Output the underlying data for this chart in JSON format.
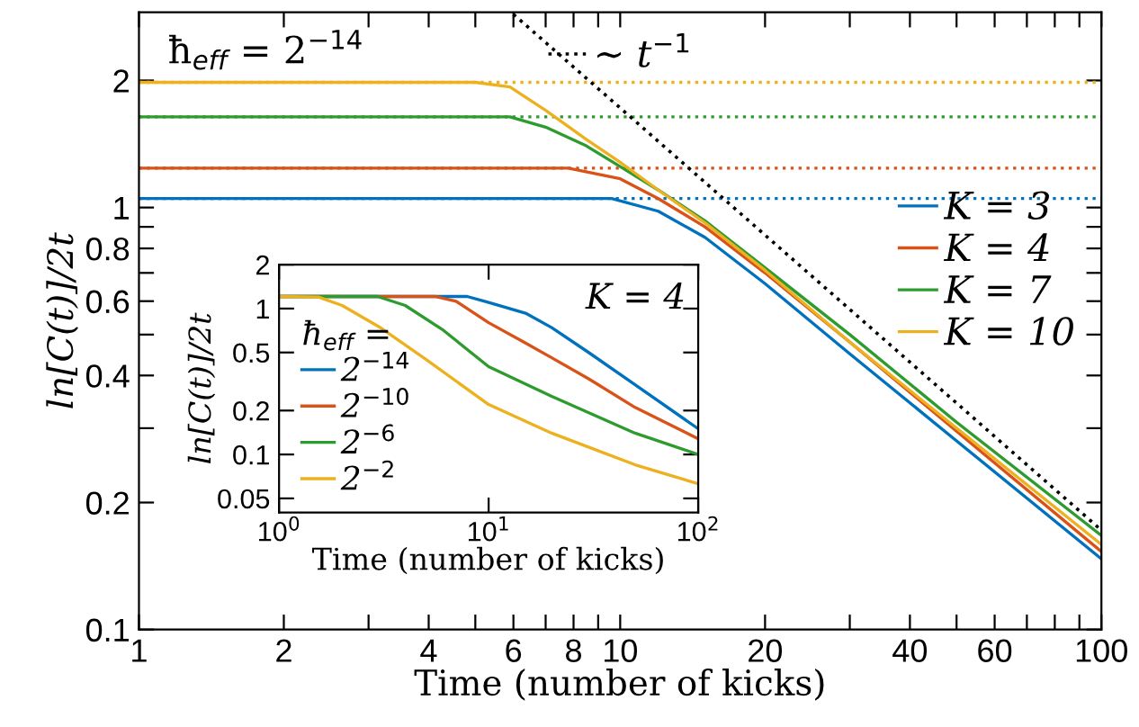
{
  "chart_data": [
    {
      "type": "line",
      "xlabel": "Time (number of kicks)",
      "ylabel": "ln[C(t)]/2t",
      "log": "xy",
      "xlim": [
        1,
        100
      ],
      "ylim": [
        0.1,
        2.9
      ],
      "xticks": [
        1,
        2,
        {
          "value": 3,
          "label": null
        },
        4,
        {
          "value": 5,
          "label": null
        },
        6,
        {
          "value": 7,
          "label": null
        },
        8,
        {
          "value": 9,
          "label": null
        },
        10,
        20,
        {
          "value": 30,
          "label": null
        },
        40,
        {
          "value": 50,
          "label": null
        },
        60,
        {
          "value": 70,
          "label": null
        },
        {
          "value": 80,
          "label": null
        },
        {
          "value": 90,
          "label": null
        },
        100
      ],
      "yticks": [
        0.1,
        0.2,
        {
          "value": 0.3,
          "label": null
        },
        0.4,
        {
          "value": 0.5,
          "label": null
        },
        0.6,
        {
          "value": 0.7,
          "label": null
        },
        0.8,
        {
          "value": 0.9,
          "label": null
        },
        1,
        2
      ],
      "legend": "right",
      "grid": false,
      "line_style": "solid",
      "annotations": [
        "ħ$_{eff}$ = 2$^{−14}$"
      ],
      "ref_lines": [
        {
          "axis": "y",
          "value": 1.05,
          "color": "#0072bd",
          "line_style": "dotted"
        },
        {
          "axis": "y",
          "value": 1.24,
          "color": "#d95319",
          "line_style": "dotted"
        },
        {
          "axis": "y",
          "value": 1.64,
          "color": "#2e9b2e",
          "line_style": "dotted"
        },
        {
          "axis": "y",
          "value": 1.98,
          "color": "#edb120",
          "line_style": "dotted"
        }
      ],
      "series": [
        {
          "name": "K = 3",
          "color": "#0072bd",
          "x": [
            1,
            9.6,
            12,
            15,
            20,
            30,
            50,
            100
          ],
          "values": [
            1.05,
            1.05,
            0.98,
            0.85,
            0.66,
            0.45,
            0.28,
            0.147
          ]
        },
        {
          "name": "K = 4",
          "color": "#d95319",
          "x": [
            1,
            7.8,
            10,
            12,
            15,
            20,
            30,
            50,
            100
          ],
          "values": [
            1.24,
            1.24,
            1.17,
            1.05,
            0.9,
            0.7,
            0.48,
            0.295,
            0.153
          ]
        },
        {
          "name": "K = 7",
          "color": "#2e9b2e",
          "x": [
            1,
            5.9,
            7,
            8.5,
            10,
            12,
            15,
            20,
            30,
            50,
            100
          ],
          "values": [
            1.64,
            1.64,
            1.55,
            1.4,
            1.25,
            1.1,
            0.93,
            0.72,
            0.5,
            0.31,
            0.167
          ]
        },
        {
          "name": "K = 10",
          "color": "#edb120",
          "x": [
            1,
            5,
            5.9,
            7,
            8.5,
            10,
            12,
            15,
            20,
            30,
            50,
            100
          ],
          "values": [
            1.98,
            1.98,
            1.93,
            1.7,
            1.45,
            1.28,
            1.1,
            0.92,
            0.71,
            0.48,
            0.3,
            0.159
          ]
        },
        {
          "name": "∼ t$^{−1}$",
          "color": "#000000",
          "line_style": "dotted",
          "x": [
            6,
            100
          ],
          "values": [
            2.87,
            0.172
          ]
        }
      ]
    },
    {
      "type": "line",
      "xlabel": "Time (number of kicks)",
      "ylabel": "ln[C(t)]/2t",
      "log": "xy",
      "xlim": [
        1,
        100
      ],
      "ylim": [
        0.04,
        2
      ],
      "xticks": [
        {
          "value": 1,
          "label": "10$^{0}$"
        },
        {
          "value": 10,
          "label": "10$^{1}$"
        },
        {
          "value": 100,
          "label": "10$^{2}$"
        }
      ],
      "yticks": [
        0.05,
        0.1,
        0.2,
        0.5,
        1,
        2
      ],
      "legend": "left",
      "legend_title": "ħ$_{eff}$ =",
      "grid": false,
      "line_style": "solid",
      "annotations": [
        "K = 4"
      ],
      "series": [
        {
          "name": "2$^{−14}$",
          "color": "#0072bd",
          "x": [
            1,
            7.9,
            10,
            15,
            20,
            30,
            50,
            100
          ],
          "values": [
            1.21,
            1.21,
            1.1,
            0.93,
            0.74,
            0.5,
            0.3,
            0.15
          ]
        },
        {
          "name": "2$^{−10}$",
          "color": "#d95319",
          "x": [
            1,
            5.6,
            7,
            10,
            15,
            20,
            30,
            50,
            100
          ],
          "values": [
            1.21,
            1.21,
            1.12,
            0.8,
            0.58,
            0.46,
            0.33,
            0.21,
            0.128
          ]
        },
        {
          "name": "2$^{−6}$",
          "color": "#2e9b2e",
          "x": [
            1,
            2.95,
            4,
            6,
            10,
            20,
            50,
            100
          ],
          "values": [
            1.21,
            1.21,
            1.05,
            0.72,
            0.4,
            0.25,
            0.14,
            0.1
          ]
        },
        {
          "name": "2$^{−2}$",
          "color": "#edb120",
          "x": [
            1,
            1.54,
            2,
            3,
            5,
            10,
            20,
            50,
            100
          ],
          "values": [
            1.21,
            1.2,
            1.05,
            0.75,
            0.45,
            0.22,
            0.14,
            0.085,
            0.063
          ]
        }
      ]
    }
  ]
}
